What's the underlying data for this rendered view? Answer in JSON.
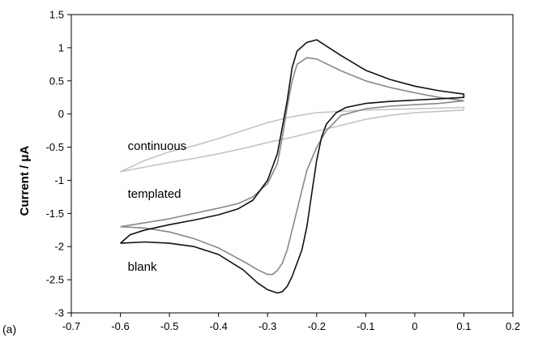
{
  "chart_data": {
    "type": "line",
    "panel_label": "(a)",
    "xlabel": "",
    "ylabel": "Current / μA",
    "xlim": [
      -0.7,
      0.2
    ],
    "ylim": [
      -3,
      1.5
    ],
    "x_ticks": [
      -0.7,
      -0.6,
      -0.5,
      -0.4,
      -0.3,
      -0.2,
      -0.1,
      0,
      0.1,
      0.2
    ],
    "x_tick_labels": [
      "-0.7",
      "-0.6",
      "-0.5",
      "-0.4",
      "-0.3",
      "-0.2",
      "-0.1",
      "0",
      "0.1",
      "0.2"
    ],
    "y_ticks": [
      -3,
      -2.5,
      -2,
      -1.5,
      -1,
      -0.5,
      0,
      0.5,
      1,
      1.5
    ],
    "y_tick_labels": [
      "-3",
      "-2.5",
      "-2",
      "-1.5",
      "-1",
      "-0.5",
      "0",
      "0.5",
      "1",
      "1.5"
    ],
    "grid": false,
    "legend": "none",
    "series": [
      {
        "color": "#111111",
        "x": [
          -0.6,
          -0.55,
          -0.5,
          -0.45,
          -0.4,
          -0.35,
          -0.32,
          -0.3,
          -0.28,
          -0.27,
          -0.26,
          -0.25,
          -0.23,
          -0.22,
          -0.21,
          -0.2,
          -0.19,
          -0.18,
          -0.16,
          -0.14,
          -0.1,
          -0.05,
          0.0,
          0.05,
          0.1,
          0.1,
          0.05,
          0.0,
          -0.05,
          -0.1,
          -0.15,
          -0.2,
          -0.22,
          -0.24,
          -0.25,
          -0.26,
          -0.27,
          -0.28,
          -0.3,
          -0.33,
          -0.36,
          -0.4,
          -0.45,
          -0.5,
          -0.55,
          -0.58,
          -0.6
        ],
        "y": [
          -1.95,
          -1.93,
          -1.95,
          -2.0,
          -2.12,
          -2.35,
          -2.55,
          -2.65,
          -2.7,
          -2.68,
          -2.6,
          -2.45,
          -2.05,
          -1.7,
          -1.2,
          -0.7,
          -0.35,
          -0.15,
          0.02,
          0.1,
          0.16,
          0.19,
          0.21,
          0.23,
          0.25,
          0.3,
          0.35,
          0.42,
          0.52,
          0.66,
          0.88,
          1.12,
          1.08,
          0.95,
          0.7,
          0.2,
          -0.2,
          -0.6,
          -1.0,
          -1.3,
          -1.43,
          -1.52,
          -1.6,
          -1.67,
          -1.75,
          -1.82,
          -1.95
        ]
      },
      {
        "color": "#888888",
        "x": [
          -0.6,
          -0.55,
          -0.5,
          -0.45,
          -0.4,
          -0.35,
          -0.32,
          -0.3,
          -0.29,
          -0.28,
          -0.27,
          -0.26,
          -0.25,
          -0.24,
          -0.23,
          -0.22,
          -0.2,
          -0.18,
          -0.15,
          -0.1,
          -0.05,
          0.0,
          0.05,
          0.1,
          0.1,
          0.05,
          0.0,
          -0.05,
          -0.1,
          -0.15,
          -0.2,
          -0.22,
          -0.24,
          -0.25,
          -0.26,
          -0.27,
          -0.28,
          -0.3,
          -0.33,
          -0.36,
          -0.4,
          -0.45,
          -0.5,
          -0.55,
          -0.6
        ],
        "y": [
          -1.7,
          -1.72,
          -1.78,
          -1.88,
          -2.02,
          -2.22,
          -2.35,
          -2.42,
          -2.42,
          -2.36,
          -2.25,
          -2.05,
          -1.75,
          -1.45,
          -1.15,
          -0.85,
          -0.5,
          -0.25,
          -0.02,
          0.08,
          0.12,
          0.14,
          0.16,
          0.2,
          0.2,
          0.25,
          0.32,
          0.4,
          0.5,
          0.65,
          0.83,
          0.85,
          0.75,
          0.5,
          0.1,
          -0.35,
          -0.75,
          -1.05,
          -1.25,
          -1.35,
          -1.42,
          -1.5,
          -1.58,
          -1.64,
          -1.7
        ]
      },
      {
        "color": "#c4c4c4",
        "x": [
          -0.6,
          -0.55,
          -0.5,
          -0.45,
          -0.4,
          -0.35,
          -0.3,
          -0.25,
          -0.2,
          -0.15,
          -0.1,
          -0.05,
          0.0,
          0.05,
          0.1,
          0.1,
          0.05,
          0.0,
          -0.05,
          -0.1,
          -0.15,
          -0.2,
          -0.25,
          -0.3,
          -0.35,
          -0.4,
          -0.45,
          -0.5,
          -0.55,
          -0.6
        ],
        "y": [
          -0.87,
          -0.8,
          -0.73,
          -0.67,
          -0.6,
          -0.52,
          -0.43,
          -0.35,
          -0.26,
          -0.17,
          -0.08,
          -0.02,
          0.02,
          0.04,
          0.06,
          0.1,
          0.09,
          0.08,
          0.07,
          0.06,
          0.04,
          0.02,
          -0.04,
          -0.13,
          -0.25,
          -0.37,
          -0.48,
          -0.57,
          -0.7,
          -0.87
        ]
      }
    ],
    "annotations": [
      {
        "text": "continuous",
        "x": -0.585,
        "y": -0.48
      },
      {
        "text": "templated",
        "x": -0.585,
        "y": -1.2
      },
      {
        "text": "blank",
        "x": -0.585,
        "y": -2.3
      }
    ]
  }
}
